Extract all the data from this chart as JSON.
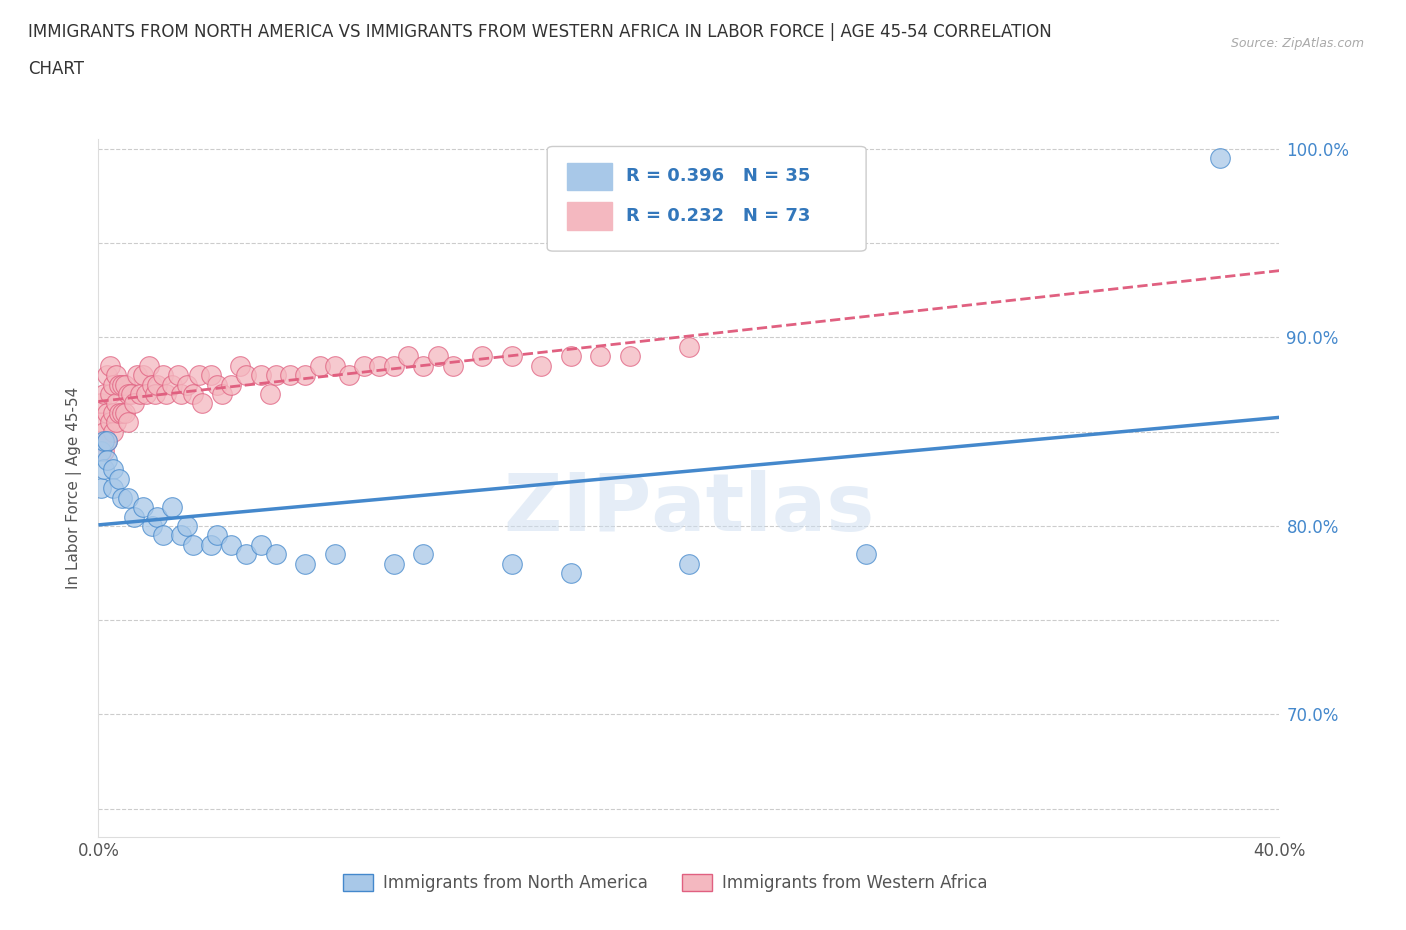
{
  "title_line1": "IMMIGRANTS FROM NORTH AMERICA VS IMMIGRANTS FROM WESTERN AFRICA IN LABOR FORCE | AGE 45-54 CORRELATION",
  "title_line2": "CHART",
  "source": "Source: ZipAtlas.com",
  "ylabel": "In Labor Force | Age 45-54",
  "xlim": [
    0.0,
    0.4
  ],
  "ylim": [
    0.635,
    1.005
  ],
  "xtick_vals": [
    0.0,
    0.1,
    0.2,
    0.3,
    0.4
  ],
  "xtick_labels": [
    "0.0%",
    "",
    "",
    "",
    "40.0%"
  ],
  "ytick_vals": [
    0.65,
    0.7,
    0.75,
    0.8,
    0.85,
    0.9,
    0.95,
    1.0
  ],
  "ytick_labels_right": [
    "",
    "70.0%",
    "",
    "80.0%",
    "",
    "90.0%",
    "",
    "100.0%"
  ],
  "blue_color": "#a8c8e8",
  "pink_color": "#f4b8c0",
  "blue_line_color": "#4488cc",
  "pink_line_color": "#e06080",
  "r_blue": 0.396,
  "n_blue": 35,
  "r_pink": 0.232,
  "n_pink": 73,
  "legend_label_blue": "Immigrants from North America",
  "legend_label_pink": "Immigrants from Western Africa",
  "watermark": "ZIPatlas",
  "blue_scatter_x": [
    0.001,
    0.001,
    0.002,
    0.002,
    0.003,
    0.003,
    0.005,
    0.005,
    0.007,
    0.008,
    0.01,
    0.012,
    0.015,
    0.018,
    0.02,
    0.022,
    0.025,
    0.028,
    0.03,
    0.032,
    0.038,
    0.04,
    0.045,
    0.05,
    0.055,
    0.06,
    0.07,
    0.08,
    0.1,
    0.11,
    0.14,
    0.16,
    0.2,
    0.26,
    0.38
  ],
  "blue_scatter_y": [
    0.84,
    0.82,
    0.845,
    0.83,
    0.845,
    0.835,
    0.83,
    0.82,
    0.825,
    0.815,
    0.815,
    0.805,
    0.81,
    0.8,
    0.805,
    0.795,
    0.81,
    0.795,
    0.8,
    0.79,
    0.79,
    0.795,
    0.79,
    0.785,
    0.79,
    0.785,
    0.78,
    0.785,
    0.78,
    0.785,
    0.78,
    0.775,
    0.78,
    0.785,
    0.995
  ],
  "pink_scatter_x": [
    0.001,
    0.001,
    0.001,
    0.002,
    0.002,
    0.002,
    0.003,
    0.003,
    0.003,
    0.004,
    0.004,
    0.004,
    0.005,
    0.005,
    0.005,
    0.006,
    0.006,
    0.006,
    0.007,
    0.007,
    0.008,
    0.008,
    0.009,
    0.009,
    0.01,
    0.01,
    0.011,
    0.012,
    0.013,
    0.014,
    0.015,
    0.016,
    0.017,
    0.018,
    0.019,
    0.02,
    0.022,
    0.023,
    0.025,
    0.027,
    0.028,
    0.03,
    0.032,
    0.034,
    0.035,
    0.038,
    0.04,
    0.042,
    0.045,
    0.048,
    0.05,
    0.055,
    0.058,
    0.06,
    0.065,
    0.07,
    0.075,
    0.08,
    0.085,
    0.09,
    0.095,
    0.1,
    0.105,
    0.11,
    0.115,
    0.12,
    0.13,
    0.14,
    0.15,
    0.16,
    0.17,
    0.18,
    0.2
  ],
  "pink_scatter_y": [
    0.855,
    0.845,
    0.865,
    0.87,
    0.85,
    0.84,
    0.88,
    0.86,
    0.845,
    0.885,
    0.87,
    0.855,
    0.875,
    0.86,
    0.85,
    0.88,
    0.865,
    0.855,
    0.875,
    0.86,
    0.875,
    0.86,
    0.875,
    0.86,
    0.87,
    0.855,
    0.87,
    0.865,
    0.88,
    0.87,
    0.88,
    0.87,
    0.885,
    0.875,
    0.87,
    0.875,
    0.88,
    0.87,
    0.875,
    0.88,
    0.87,
    0.875,
    0.87,
    0.88,
    0.865,
    0.88,
    0.875,
    0.87,
    0.875,
    0.885,
    0.88,
    0.88,
    0.87,
    0.88,
    0.88,
    0.88,
    0.885,
    0.885,
    0.88,
    0.885,
    0.885,
    0.885,
    0.89,
    0.885,
    0.89,
    0.885,
    0.89,
    0.89,
    0.885,
    0.89,
    0.89,
    0.89,
    0.895
  ]
}
